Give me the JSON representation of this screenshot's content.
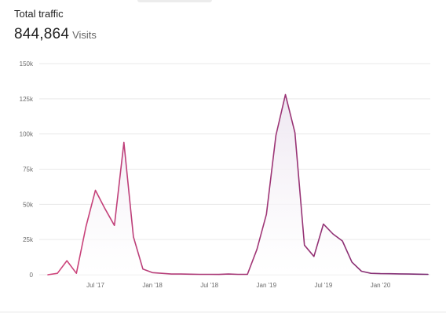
{
  "header": {
    "title": "Total traffic",
    "value": "844,864",
    "unit": "Visits"
  },
  "chart_data": {
    "type": "area",
    "title": "",
    "xlabel": "",
    "ylabel": "",
    "ylim": [
      0,
      150000
    ],
    "y_ticks": [
      0,
      25000,
      50000,
      75000,
      100000,
      125000,
      150000
    ],
    "y_tick_labels": [
      "0",
      "25k",
      "50k",
      "75k",
      "100k",
      "125k",
      "150k"
    ],
    "x_ticks": [
      "2017-07",
      "2018-01",
      "2018-07",
      "2019-01",
      "2019-07",
      "2020-01"
    ],
    "x_tick_labels": [
      "Jul '17",
      "Jan '18",
      "Jul '18",
      "Jan '19",
      "Jul '19",
      "Jan '20"
    ],
    "grid": true,
    "line_gradient": [
      "#d0457b",
      "#7a2a72"
    ],
    "fill_color": "#eee7f1",
    "series": [
      {
        "x": [
          "2017-02",
          "2017-03",
          "2017-04",
          "2017-05",
          "2017-06",
          "2017-07",
          "2017-08",
          "2017-09",
          "2017-10",
          "2017-11",
          "2017-12",
          "2018-01",
          "2018-02",
          "2018-03",
          "2018-04",
          "2018-05",
          "2018-06",
          "2018-07",
          "2018-08",
          "2018-09",
          "2018-10",
          "2018-11",
          "2018-12",
          "2019-01",
          "2019-02",
          "2019-03",
          "2019-04",
          "2019-05",
          "2019-06",
          "2019-07",
          "2019-08",
          "2019-09",
          "2019-10",
          "2019-11",
          "2019-12",
          "2020-01",
          "2020-02",
          "2020-03",
          "2020-04",
          "2020-05",
          "2020-06"
        ],
        "values": [
          0,
          1000,
          10000,
          1000,
          34000,
          60000,
          47000,
          35000,
          94000,
          27000,
          4000,
          1500,
          1000,
          500,
          500,
          400,
          300,
          300,
          200,
          500,
          300,
          300,
          18000,
          43000,
          99000,
          128000,
          101000,
          21000,
          13000,
          36000,
          29000,
          24000,
          9000,
          2500,
          1000,
          800,
          700,
          600,
          500,
          400,
          300
        ]
      }
    ]
  }
}
